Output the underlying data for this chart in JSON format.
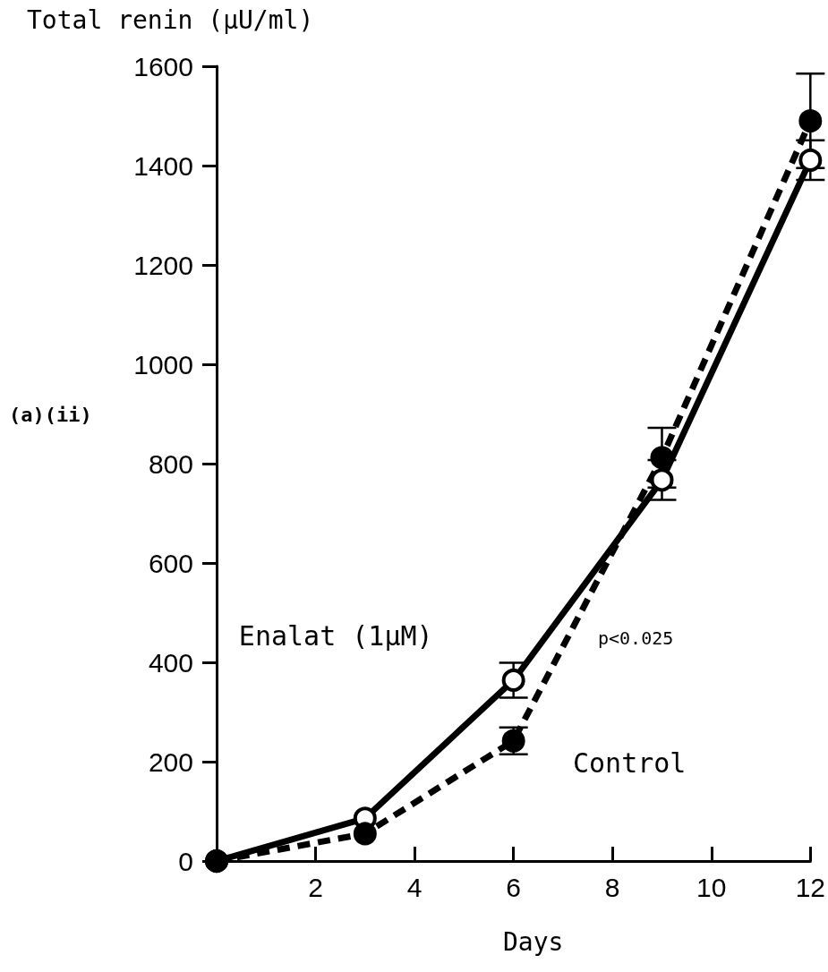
{
  "chart_data": {
    "type": "line",
    "ylabel": "Total renin (µU/ml)",
    "xlabel": "Days",
    "annotations": [
      "(a)(ii)",
      "p<0.025"
    ],
    "x": [
      0,
      3,
      6,
      9,
      12
    ],
    "series": [
      {
        "name": "Enalat (1µM)",
        "color": "#000000",
        "line_style": "solid",
        "values": [
          0,
          86,
          364,
          767,
          1411
        ],
        "errors": [
          null,
          null,
          35,
          40,
          40
        ]
      },
      {
        "name": "Control",
        "color": "#000000",
        "line_style": "dashed",
        "values": [
          0,
          55,
          242,
          812,
          1490
        ],
        "errors": [
          null,
          null,
          27,
          60,
          95
        ]
      }
    ],
    "xlim": [
      0,
      12
    ],
    "xticks": [
      2,
      4,
      6,
      8,
      10,
      12
    ],
    "ylim": [
      0,
      1600
    ],
    "yticks": [
      0,
      200,
      400,
      600,
      800,
      1000,
      1200,
      1400,
      1600
    ],
    "marker": "circle",
    "grid": false,
    "legend": false
  }
}
